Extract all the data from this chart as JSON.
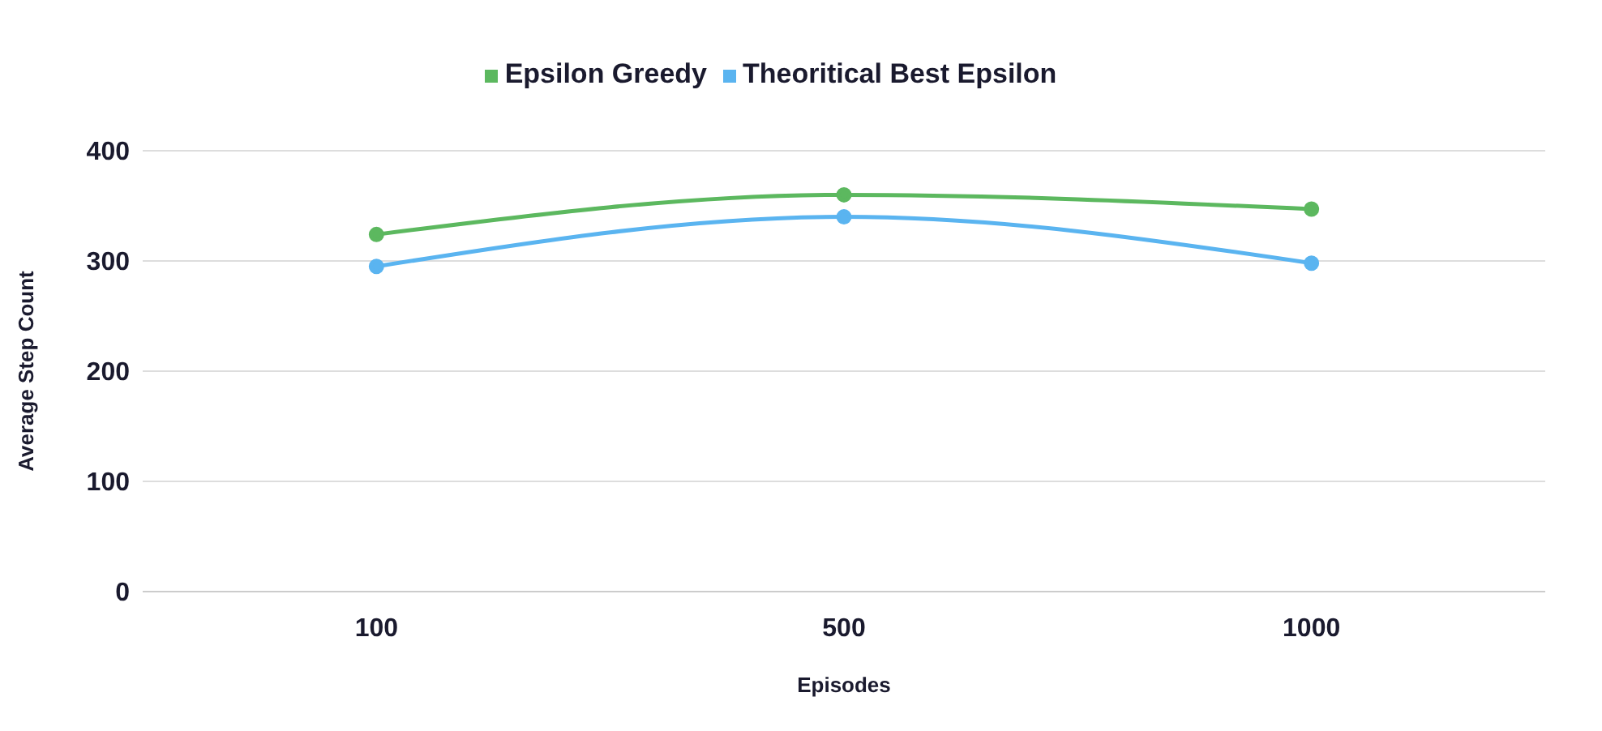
{
  "chart_data": {
    "type": "line",
    "xlabel": "Episodes",
    "ylabel": "Average Step Count",
    "categories": [
      "100",
      "500",
      "1000"
    ],
    "series": [
      {
        "name": "Epsilon Greedy",
        "color": "#5cb85f",
        "values": [
          324,
          360,
          347
        ]
      },
      {
        "name": "Theoritical Best Epsilon",
        "color": "#5ab4f0",
        "values": [
          295,
          340,
          298
        ]
      }
    ],
    "ylim": [
      0,
      400
    ],
    "yticks": [
      0,
      100,
      200,
      300,
      400
    ],
    "grid": "y",
    "legend": "top",
    "marker": "circle",
    "line_style": "solid"
  }
}
